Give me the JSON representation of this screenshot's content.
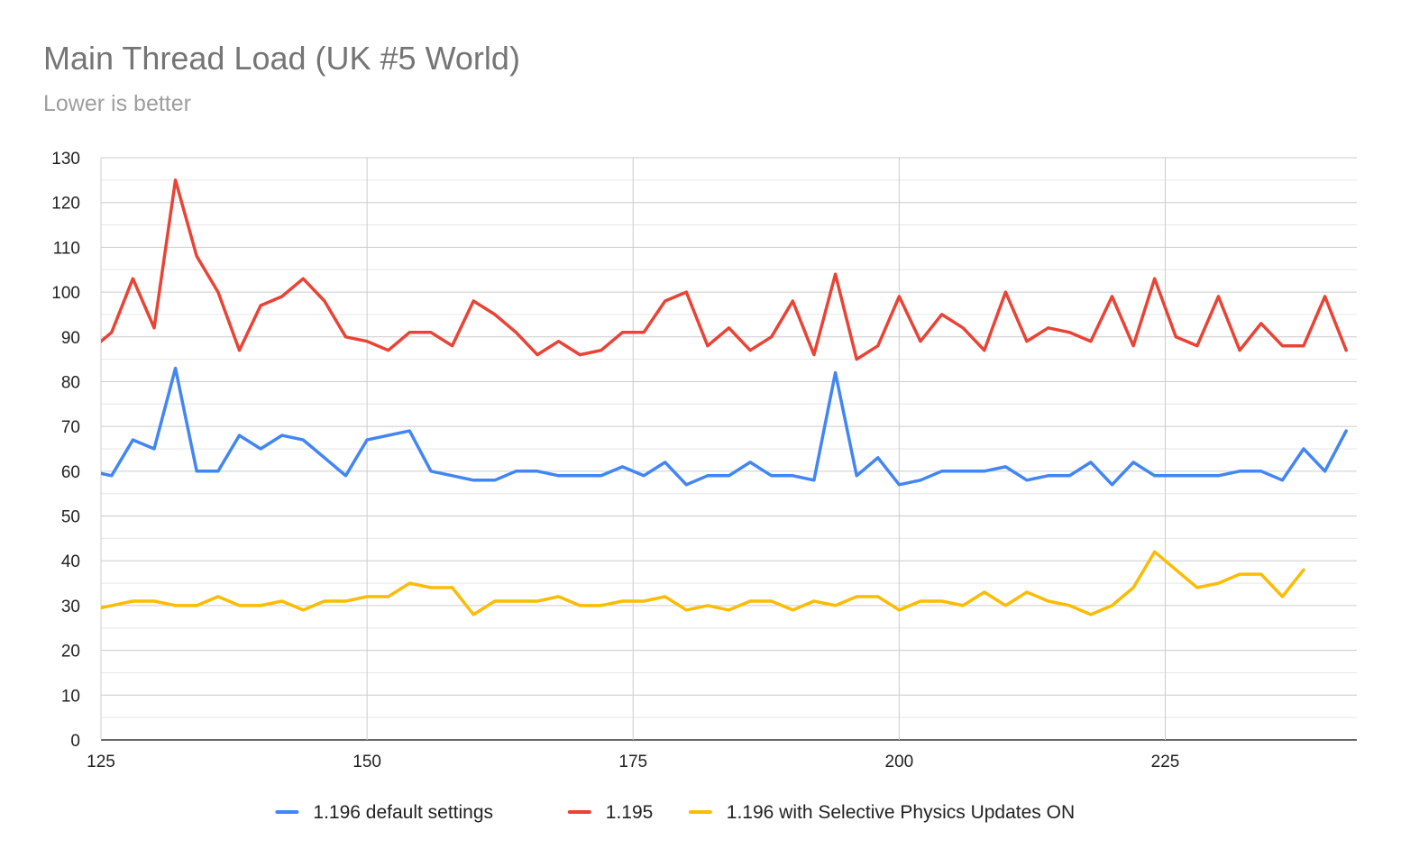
{
  "chart_data": {
    "type": "line",
    "title": "Main Thread Load (UK #5 World)",
    "subtitle": "Lower is better",
    "xlabel": "",
    "ylabel": "",
    "xlim": [
      125,
      243
    ],
    "ylim": [
      0,
      130
    ],
    "x_ticks": [
      125,
      150,
      175,
      200,
      225
    ],
    "y_ticks": [
      0,
      10,
      20,
      30,
      40,
      50,
      60,
      70,
      80,
      90,
      100,
      110,
      120,
      130
    ],
    "grid": true,
    "legend_position": "bottom",
    "x": [
      124,
      126,
      128,
      130,
      132,
      134,
      136,
      138,
      140,
      142,
      144,
      146,
      148,
      150,
      152,
      154,
      156,
      158,
      160,
      162,
      164,
      166,
      168,
      170,
      172,
      174,
      176,
      178,
      180,
      182,
      184,
      186,
      188,
      190,
      192,
      194,
      196,
      198,
      200,
      202,
      204,
      206,
      208,
      210,
      212,
      214,
      216,
      218,
      220,
      222,
      224,
      226,
      228,
      230,
      232,
      234,
      236,
      238,
      240,
      242
    ],
    "series": [
      {
        "name": "1.196 default settings",
        "color": "#4285F4",
        "values": [
          60,
          59,
          67,
          65,
          83,
          60,
          60,
          68,
          65,
          68,
          67,
          63,
          59,
          67,
          68,
          69,
          60,
          59,
          58,
          58,
          60,
          60,
          59,
          59,
          59,
          61,
          59,
          62,
          57,
          59,
          59,
          62,
          59,
          59,
          58,
          82,
          59,
          63,
          57,
          58,
          60,
          60,
          60,
          61,
          58,
          59,
          59,
          62,
          57,
          62,
          59,
          59,
          59,
          59,
          60,
          60,
          58,
          65,
          60,
          69
        ]
      },
      {
        "name": "1.195",
        "color": "#EA4335",
        "values": [
          87,
          91,
          103,
          92,
          125,
          108,
          100,
          87,
          97,
          99,
          103,
          98,
          90,
          89,
          87,
          91,
          91,
          88,
          98,
          95,
          91,
          86,
          89,
          86,
          87,
          91,
          91,
          98,
          100,
          88,
          92,
          87,
          90,
          98,
          86,
          104,
          85,
          88,
          99,
          89,
          95,
          92,
          87,
          100,
          89,
          92,
          91,
          89,
          99,
          88,
          103,
          90,
          88,
          99,
          87,
          93,
          88,
          88,
          99,
          87
        ]
      },
      {
        "name": "1.196 with Selective Physics Updates ON",
        "color": "#FBBC04",
        "values": [
          29,
          30,
          31,
          31,
          30,
          30,
          32,
          30,
          30,
          31,
          29,
          31,
          31,
          32,
          32,
          35,
          34,
          34,
          28,
          31,
          31,
          31,
          32,
          30,
          30,
          31,
          31,
          32,
          29,
          30,
          29,
          31,
          31,
          29,
          31,
          30,
          32,
          32,
          29,
          31,
          31,
          30,
          33,
          30,
          33,
          31,
          30,
          28,
          30,
          34,
          42,
          38,
          34,
          35,
          37,
          37,
          32,
          38,
          null,
          null
        ]
      }
    ]
  }
}
